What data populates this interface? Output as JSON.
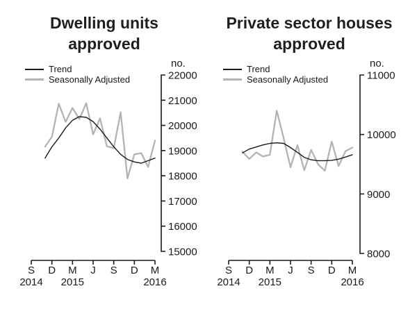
{
  "page": {
    "background": "#ffffff",
    "text_color": "#1a1a1a"
  },
  "charts": [
    {
      "id": "dwelling-units-approved",
      "title_line1": "Dwelling units",
      "title_line2": "approved",
      "unit_label": "no.",
      "legend": [
        {
          "label": "Trend",
          "color": "#1a1a1a"
        },
        {
          "label": "Seasonally Adjusted",
          "color": "#b3b3b3"
        }
      ],
      "chart_data": {
        "type": "line",
        "title": "Dwelling units approved",
        "ylabel": "no.",
        "ylim": [
          15000,
          22000
        ],
        "y_tick_step": 1000,
        "y_tick_labels": [
          "15000",
          "16000",
          "17000",
          "18000",
          "19000",
          "20000",
          "21000",
          "22000"
        ],
        "x_tick_labels": [
          "S",
          "D",
          "M",
          "J",
          "S",
          "D",
          "M"
        ],
        "x_year_labels": [
          {
            "label": "2014",
            "tick_index": 0
          },
          {
            "label": "2015",
            "tick_index": 2
          },
          {
            "label": "2016",
            "tick_index": 6
          }
        ],
        "x": [
          "Nov 2014",
          "Dec 2014",
          "Jan 2015",
          "Feb 2015",
          "Mar 2015",
          "Apr 2015",
          "May 2015",
          "Jun 2015",
          "Jul 2015",
          "Aug 2015",
          "Sep 2015",
          "Oct 2015",
          "Nov 2015",
          "Dec 2015",
          "Jan 2016",
          "Feb 2016",
          "Mar 2016"
        ],
        "grid": false,
        "legend_position": "top-left",
        "series": [
          {
            "name": "Trend",
            "color": "#1a1a1a",
            "width": 1.4,
            "values": [
              18700,
              19150,
              19500,
              19900,
              20200,
              20350,
              20320,
              20150,
              19850,
              19500,
              19150,
              18850,
              18650,
              18550,
              18500,
              18600,
              18700
            ]
          },
          {
            "name": "Seasonally Adjusted",
            "color": "#b3b3b3",
            "width": 2.3,
            "values": [
              19150,
              19550,
              20860,
              20140,
              20690,
              20250,
              20880,
              19640,
              20280,
              19170,
              19100,
              20520,
              17900,
              18850,
              18900,
              18350,
              19400
            ]
          }
        ]
      }
    },
    {
      "id": "private-sector-houses-approved",
      "title_line1": "Private sector houses",
      "title_line2": "approved",
      "unit_label": "no.",
      "legend": [
        {
          "label": "Trend",
          "color": "#1a1a1a"
        },
        {
          "label": "Seasonally Adjusted",
          "color": "#b3b3b3"
        }
      ],
      "chart_data": {
        "type": "line",
        "title": "Private sector houses approved",
        "ylabel": "no.",
        "ylim": [
          8000,
          11000
        ],
        "y_tick_step": 1000,
        "y_tick_labels": [
          "8000",
          "9000",
          "10000",
          "11000"
        ],
        "x_tick_labels": [
          "S",
          "D",
          "M",
          "J",
          "S",
          "D",
          "M"
        ],
        "x_year_labels": [
          {
            "label": "2014",
            "tick_index": 0
          },
          {
            "label": "2015",
            "tick_index": 2
          },
          {
            "label": "2016",
            "tick_index": 6
          }
        ],
        "x": [
          "Nov 2014",
          "Dec 2014",
          "Jan 2015",
          "Feb 2015",
          "Mar 2015",
          "Apr 2015",
          "May 2015",
          "Jun 2015",
          "Jul 2015",
          "Aug 2015",
          "Sep 2015",
          "Oct 2015",
          "Nov 2015",
          "Dec 2015",
          "Jan 2016",
          "Feb 2016",
          "Mar 2016"
        ],
        "grid": false,
        "legend_position": "top-left",
        "series": [
          {
            "name": "Trend",
            "color": "#1a1a1a",
            "width": 1.4,
            "values": [
              9690,
              9755,
              9790,
              9825,
              9850,
              9860,
              9850,
              9780,
              9700,
              9615,
              9575,
              9560,
              9560,
              9565,
              9585,
              9620,
              9660
            ]
          },
          {
            "name": "Seasonally Adjusted",
            "color": "#b3b3b3",
            "width": 2.3,
            "values": [
              9710,
              9590,
              9700,
              9630,
              9660,
              10400,
              9940,
              9450,
              9820,
              9400,
              9740,
              9500,
              9390,
              9880,
              9470,
              9720,
              9780
            ]
          }
        ]
      }
    }
  ]
}
